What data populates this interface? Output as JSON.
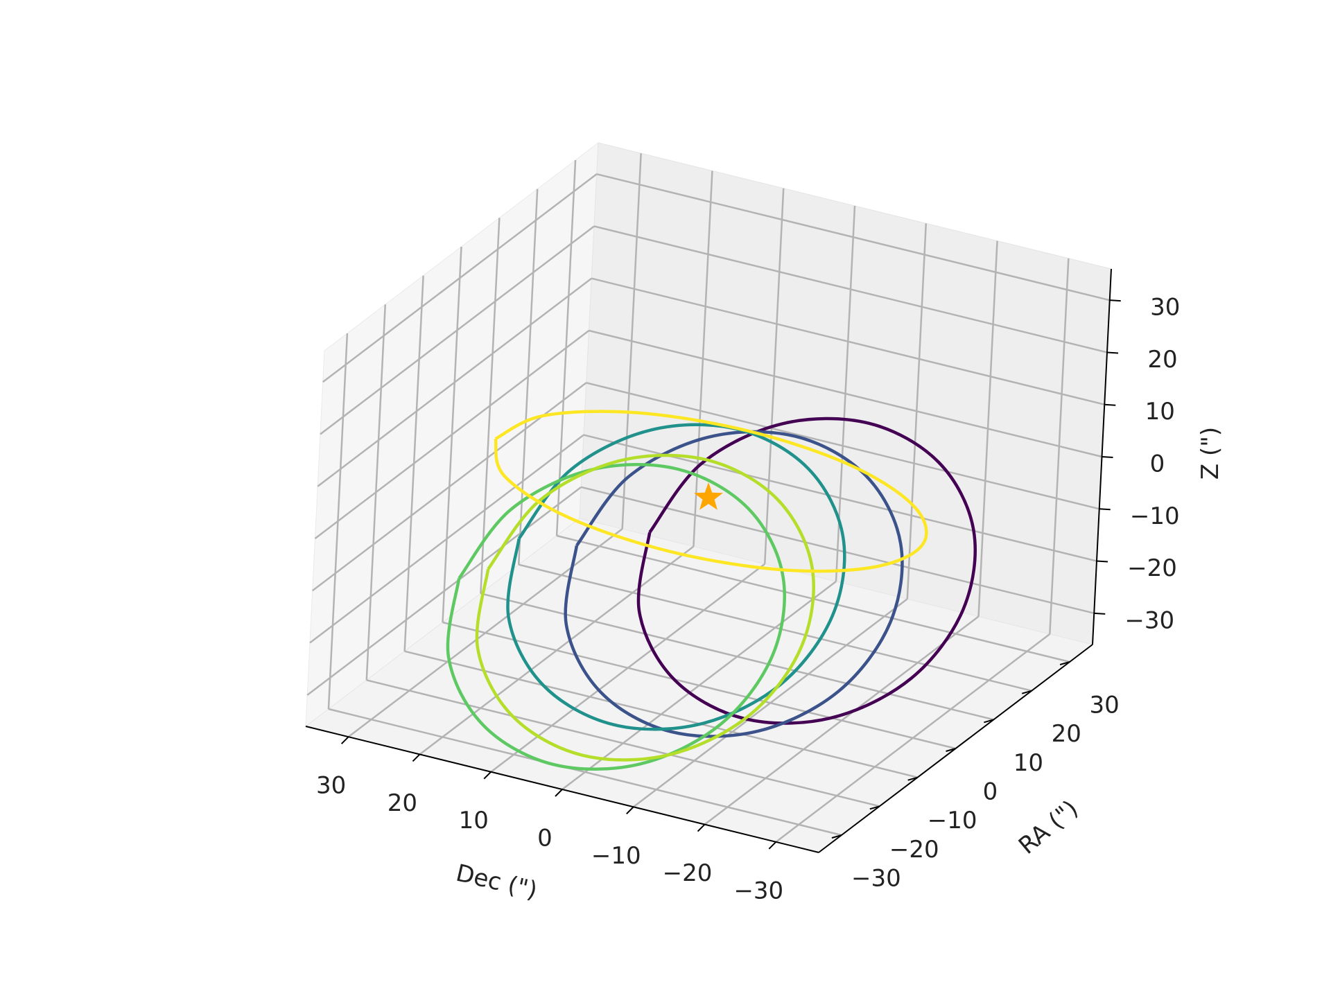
{
  "chart_data": {
    "type": "line3d",
    "xlabel": "Dec (\")",
    "ylabel": "RA (\")",
    "zlabel": "Z (\")",
    "xlim": [
      -36,
      36
    ],
    "ylim": [
      -36,
      36
    ],
    "zlim": [
      -36,
      36
    ],
    "xticks": [
      {
        "value": -30,
        "label": "−30"
      },
      {
        "value": -20,
        "label": "−20"
      },
      {
        "value": -10,
        "label": "−10"
      },
      0,
      10,
      20,
      30
    ],
    "yticks": [
      {
        "value": -30,
        "label": "−30"
      },
      {
        "value": -20,
        "label": "−20"
      },
      {
        "value": -10,
        "label": "−10"
      },
      0,
      10,
      20,
      30
    ],
    "zticks": [
      {
        "value": -30,
        "label": "−30"
      },
      {
        "value": -20,
        "label": "−20"
      },
      {
        "value": -10,
        "label": "−10"
      },
      0,
      10,
      20,
      30
    ],
    "grid": true,
    "series": [
      {
        "color": "#440154",
        "x": [
          14,
          11.1,
          3,
          -8,
          -19,
          -27.1,
          -30,
          -27.1,
          -19,
          -8,
          3,
          11.1,
          14
        ],
        "y": [
          12,
          19.5,
          25,
          27,
          25,
          19.5,
          12,
          4.5,
          -1,
          -3,
          -1,
          4.5,
          12
        ],
        "z": [
          -18,
          -8,
          -0.7,
          2,
          -0.7,
          -8,
          -18,
          -28,
          -35.3,
          -38,
          -35.3,
          -28,
          -18
        ]
      },
      {
        "color": "#3b528b",
        "x": [
          22,
          19.1,
          11,
          0,
          -11,
          -19.1,
          -22,
          -19.1,
          -11,
          0,
          11,
          19.1,
          22
        ],
        "y": [
          8,
          15.5,
          21,
          23,
          21,
          15.5,
          8,
          0.5,
          -5,
          -7,
          -5,
          0.5,
          8
        ],
        "z": [
          -21,
          -11,
          -3.7,
          -1,
          -3.7,
          -11,
          -21,
          -31,
          -38.3,
          -41,
          -38.3,
          -31,
          -21
        ]
      },
      {
        "color": "#21918c",
        "x": [
          27,
          24.1,
          16,
          5,
          -6,
          -14.1,
          -17,
          -14.1,
          -6,
          5,
          16,
          24.1,
          27
        ],
        "y": [
          2,
          9.5,
          15,
          17,
          15,
          9.5,
          2,
          -5.5,
          -11,
          -13,
          -11,
          -5.5,
          2
        ],
        "z": [
          -18,
          -8,
          -0.7,
          2,
          -0.7,
          -8,
          -18,
          -28,
          -35.3,
          -38,
          -35.3,
          -28,
          -18
        ]
      },
      {
        "color": "#5ec962",
        "x": [
          32,
          29.1,
          21,
          10,
          -1,
          -9.1,
          -12,
          -9.1,
          -1,
          10,
          21,
          29.1,
          32
        ],
        "y": [
          -4,
          3.5,
          9,
          11,
          9,
          3.5,
          -4,
          -11.5,
          -17,
          -19,
          -17,
          -11.5,
          -4
        ],
        "z": [
          -24,
          -14,
          -6.7,
          -4,
          -6.7,
          -14,
          -24,
          -34,
          -41.3,
          -44,
          -41.3,
          -34,
          -24
        ]
      },
      {
        "color": "#b5de2b",
        "x": [
          26,
          23.1,
          15,
          4,
          -7,
          -15.1,
          -18,
          -15.1,
          -7,
          4,
          15,
          23.1,
          26
        ],
        "y": [
          -8,
          -0.5,
          5,
          7,
          5,
          -0.5,
          -8,
          -15.5,
          -21,
          -23,
          -21,
          -15.5,
          -8
        ],
        "z": [
          -18,
          -8,
          -0.7,
          2,
          -0.7,
          -8,
          -18,
          -28,
          -35.3,
          -38,
          -35.3,
          -28,
          -18
        ]
      },
      {
        "color": "#fde725",
        "x": [
          35,
          31,
          20,
          5,
          -10,
          -21,
          -25,
          -21,
          -10,
          5,
          20,
          31,
          35
        ],
        "y": [
          10,
          15,
          18.7,
          20,
          18.7,
          15,
          10,
          5,
          1.3,
          0,
          1.3,
          5,
          10
        ],
        "z": [
          -6,
          -3,
          -0.8,
          0,
          -0.8,
          -3,
          -6,
          -9,
          -11.2,
          -12,
          -11.2,
          -9,
          -6
        ]
      }
    ],
    "star": {
      "x": 0,
      "y": 0,
      "z": 0,
      "color": "#ffa500"
    }
  }
}
